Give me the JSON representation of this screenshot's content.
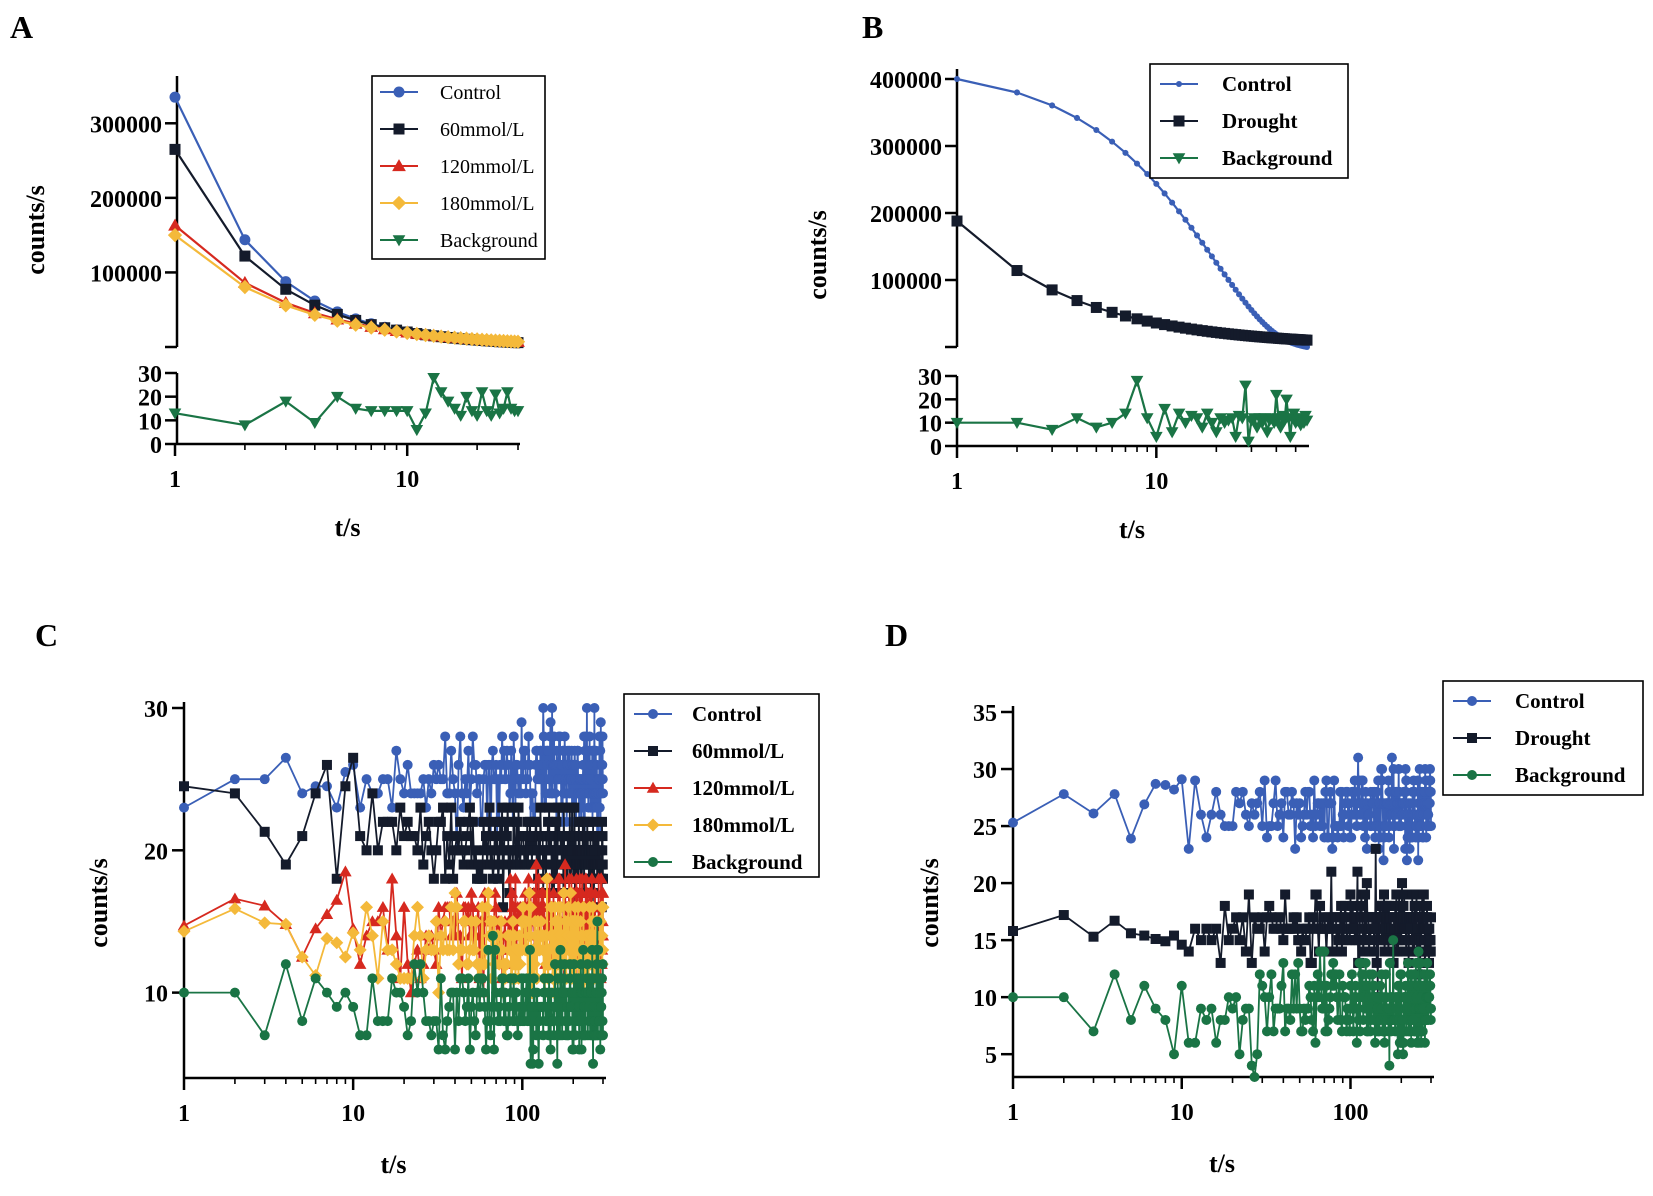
{
  "colors": {
    "blue": "#3a5fb6",
    "black": "#141b2b",
    "red": "#d6291f",
    "yellow": "#f4b93a",
    "green": "#1a7445"
  },
  "chart_data": [
    {
      "panel": "A",
      "type": "line",
      "xlabel": "t/s",
      "ylabel": "counts/s",
      "xscale": "log",
      "xlim": [
        1,
        30
      ],
      "x_ticks": [
        "1",
        "10"
      ],
      "main_ylim": [
        0,
        350000
      ],
      "main_y_ticks": [
        "100000",
        "200000",
        "300000"
      ],
      "sub_ylim": [
        0,
        30
      ],
      "sub_y_ticks": [
        "0",
        "10",
        "20",
        "30"
      ],
      "legend": [
        "Control",
        "60mmol/L",
        "120mmol/L",
        "180mmol/L",
        "Background"
      ],
      "series": [
        {
          "name": "Control",
          "color": "blue",
          "marker": "circle",
          "kind": "decay",
          "a": 335000,
          "p": 1.22,
          "c": 0,
          "n": 30
        },
        {
          "name": "60mmol/L",
          "color": "black",
          "marker": "square",
          "kind": "decay",
          "a": 265000,
          "p": 1.12,
          "c": 0,
          "n": 30
        },
        {
          "name": "120mmol/L",
          "color": "red",
          "marker": "triangle",
          "kind": "decay",
          "a": 163000,
          "p": 0.92,
          "c": 0,
          "n": 30
        },
        {
          "name": "180mmol/L",
          "color": "yellow",
          "marker": "diamond",
          "kind": "decay",
          "a": 150000,
          "p": 0.9,
          "c": 0,
          "n": 30
        },
        {
          "name": "Background",
          "color": "green",
          "marker": "triangle-down",
          "kind": "values",
          "sub": true,
          "values": [
            13,
            8,
            18,
            9,
            20,
            15,
            14,
            14,
            14,
            14,
            6,
            13,
            28,
            22,
            18,
            15,
            12,
            20,
            14,
            12,
            22,
            14,
            12,
            21,
            13,
            15,
            22,
            15,
            14,
            14
          ]
        }
      ]
    },
    {
      "panel": "B",
      "type": "line",
      "xlabel": "t/s",
      "ylabel": "counts/s",
      "xscale": "log",
      "xlim": [
        1,
        57
      ],
      "x_ticks": [
        "1",
        "10"
      ],
      "main_ylim": [
        0,
        400000
      ],
      "main_y_ticks": [
        "100000",
        "200000",
        "300000",
        "400000"
      ],
      "sub_ylim": [
        0,
        30
      ],
      "sub_y_ticks": [
        "0",
        "10",
        "20",
        "30"
      ],
      "legend": [
        "Control",
        "Drought",
        "Background"
      ],
      "series": [
        {
          "name": "Control",
          "color": "blue",
          "marker": "circle-small",
          "kind": "decay-exp",
          "a": 400000,
          "tau": 11,
          "n": 57
        },
        {
          "name": "Drought",
          "color": "black",
          "marker": "square",
          "kind": "decay",
          "a": 188000,
          "p": 0.72,
          "c": 0,
          "n": 57
        },
        {
          "name": "Background",
          "color": "green",
          "marker": "triangle-down",
          "kind": "values",
          "sub": true,
          "values": [
            10,
            10,
            7,
            12,
            8,
            10,
            14,
            28,
            12,
            4,
            16,
            6,
            14,
            10,
            13,
            12,
            8,
            14,
            10,
            6,
            12,
            10,
            11,
            12,
            4,
            13,
            12,
            26,
            2,
            11,
            12,
            8,
            12,
            10,
            12,
            6,
            11,
            12,
            10,
            22,
            12,
            8,
            13,
            11,
            20,
            12,
            4,
            12,
            14,
            10,
            11,
            12,
            9,
            12,
            10,
            13,
            11
          ]
        }
      ]
    },
    {
      "panel": "C",
      "type": "line",
      "xlabel": "t/s",
      "ylabel": "counts/s",
      "xscale": "log",
      "xlim": [
        1,
        300
      ],
      "x_ticks": [
        "1",
        "10",
        "100"
      ],
      "ylim": [
        4,
        30
      ],
      "y_ticks": [
        "10",
        "20",
        "30"
      ],
      "legend": [
        "Control",
        "60mmol/L",
        "120mmol/L",
        "180mmol/L",
        "Background"
      ],
      "series": [
        {
          "name": "Control",
          "color": "blue",
          "marker": "circle",
          "kind": "noise",
          "mean": 25,
          "trend": 0,
          "amp": 2.6,
          "seed": 11,
          "n": 300,
          "first": [
            23,
            25,
            25,
            26.5,
            24,
            24.5,
            24.5,
            23,
            25.5,
            26
          ]
        },
        {
          "name": "60mmol/L",
          "color": "black",
          "marker": "square",
          "kind": "noise",
          "mean": 23,
          "trend": -3.5,
          "amp": 2.3,
          "seed": 22,
          "n": 300,
          "first": [
            24.5,
            24,
            21.3,
            19,
            21,
            24,
            26,
            18,
            24.5,
            26.5
          ]
        },
        {
          "name": "120mmol/L",
          "color": "red",
          "marker": "triangle",
          "kind": "noise",
          "mean": 14.5,
          "trend": 0,
          "amp": 2.8,
          "seed": 33,
          "n": 300,
          "first": [
            14.7,
            16.6,
            16.1,
            14.8,
            12.5,
            14.5,
            15.5,
            16.5,
            18.5,
            14.5
          ]
        },
        {
          "name": "180mmol/L",
          "color": "yellow",
          "marker": "diamond",
          "kind": "noise",
          "mean": 13,
          "trend": 0,
          "amp": 2.5,
          "seed": 44,
          "n": 300,
          "first": [
            14.3,
            15.9,
            14.9,
            14.8,
            12.5,
            11.2,
            13.8,
            13.5,
            12.5,
            14.2
          ]
        },
        {
          "name": "Background",
          "color": "green",
          "marker": "circle",
          "kind": "noise",
          "mean": 9,
          "trend": 0,
          "amp": 2.6,
          "seed": 55,
          "n": 300,
          "first": [
            10,
            10,
            7,
            12,
            8,
            11,
            10,
            9,
            10,
            9
          ]
        }
      ]
    },
    {
      "panel": "D",
      "type": "line",
      "xlabel": "t/s",
      "ylabel": "counts/s",
      "xscale": "log",
      "xlim": [
        1,
        300
      ],
      "x_ticks": [
        "1",
        "10",
        "100"
      ],
      "ylim": [
        3,
        35
      ],
      "y_ticks": [
        "5",
        "10",
        "15",
        "20",
        "25",
        "30",
        "35"
      ],
      "legend": [
        "Control",
        "Drought",
        "Background"
      ],
      "series": [
        {
          "name": "Control",
          "color": "blue",
          "marker": "circle",
          "kind": "noise",
          "mean": 26.5,
          "trend": 0,
          "amp": 2.5,
          "seed": 66,
          "n": 300,
          "first": [
            25.3,
            27.8,
            26.1,
            27.8,
            23.9,
            26.9,
            28.7,
            28.6,
            28.2,
            29.1
          ]
        },
        {
          "name": "Drought",
          "color": "black",
          "marker": "square",
          "kind": "noise",
          "mean": 15.5,
          "trend": 0.5,
          "amp": 2.2,
          "seed": 77,
          "n": 300,
          "first": [
            15.8,
            17.2,
            15.3,
            16.7,
            15.6,
            15.4,
            15.1,
            14.9,
            15.4,
            14.6
          ]
        },
        {
          "name": "Background",
          "color": "green",
          "marker": "circle",
          "kind": "noise",
          "mean": 9,
          "trend": 0,
          "amp": 2.8,
          "seed": 88,
          "n": 300,
          "first": [
            10,
            10,
            7,
            12,
            8,
            11,
            9,
            8,
            5,
            11
          ]
        }
      ]
    }
  ]
}
